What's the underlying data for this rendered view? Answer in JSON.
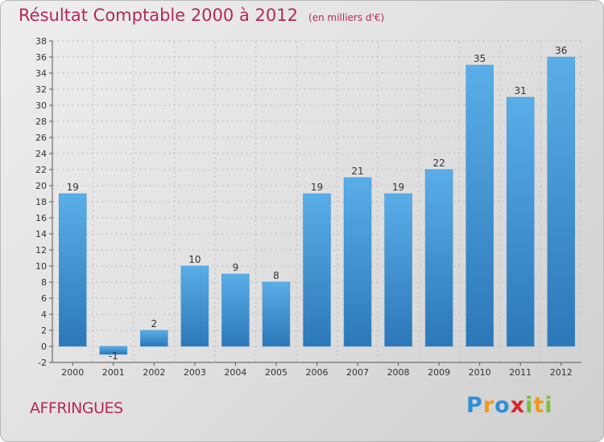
{
  "chart_data": {
    "type": "bar",
    "title": "Résultat Comptable 2000 à 2012",
    "subtitle": "(en milliers d'€)",
    "categories": [
      "2000",
      "2001",
      "2002",
      "2003",
      "2004",
      "2005",
      "2006",
      "2007",
      "2008",
      "2009",
      "2010",
      "2011",
      "2012"
    ],
    "values": [
      19,
      -1,
      2,
      10,
      9,
      8,
      19,
      21,
      19,
      22,
      35,
      31,
      36
    ],
    "ylim": [
      -2,
      38
    ],
    "yticks": [
      -2,
      0,
      2,
      4,
      6,
      8,
      10,
      12,
      14,
      16,
      18,
      20,
      22,
      24,
      26,
      28,
      30,
      32,
      34,
      36,
      38
    ],
    "grid": true,
    "bar_color": "#3f8fd2",
    "bar_color_light": "#5aaee8",
    "bar_color_dark": "#2c77b8"
  },
  "footer": {
    "commune": "AFFRINGUES",
    "brand_letters": [
      {
        "char": "P",
        "color": "#2f8fd6"
      },
      {
        "char": "r",
        "color": "#f29a1c"
      },
      {
        "char": "o",
        "color": "#2f8fd6"
      },
      {
        "char": "x",
        "color": "#d8262d"
      },
      {
        "char": "i",
        "color": "#7cbf3a"
      },
      {
        "char": "t",
        "color": "#f29a1c"
      },
      {
        "char": "i",
        "color": "#7cbf3a"
      }
    ]
  },
  "colors": {
    "title": "#b5285a",
    "axis_text": "#333333",
    "grid": "#c9c9c9"
  }
}
